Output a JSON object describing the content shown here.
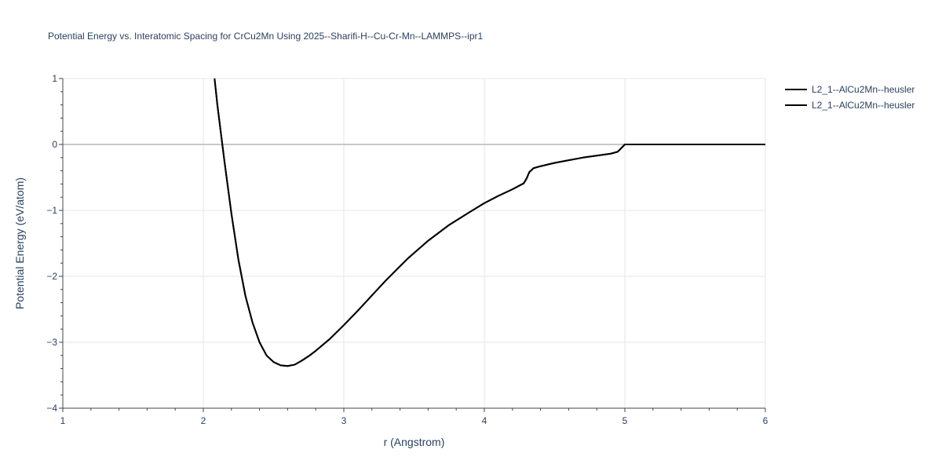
{
  "chart_data": {
    "type": "line",
    "title": "Potential Energy vs. Interatomic Spacing for CrCu2Mn Using 2025--Sharifi-H--Cu-Cr-Mn--LAMMPS--ipr1",
    "xlabel": "r (Angstrom)",
    "ylabel": "Potential Energy (eV/atom)",
    "xlim": [
      1,
      6
    ],
    "ylim": [
      -4,
      1
    ],
    "x_ticks": [
      "1",
      "2",
      "3",
      "4",
      "5",
      "6"
    ],
    "y_ticks": [
      "−4",
      "−3",
      "−2",
      "−1",
      "0",
      "1"
    ],
    "x_tick_values": [
      1,
      2,
      3,
      4,
      5,
      6
    ],
    "y_tick_values": [
      -4,
      -3,
      -2,
      -1,
      0,
      1
    ],
    "grid": true,
    "legend_position": "top-right",
    "series": [
      {
        "name": "L2_1--AlCu2Mn--heusler",
        "color": "#000000",
        "x": [
          2.08,
          2.1,
          2.15,
          2.2,
          2.25,
          2.3,
          2.35,
          2.4,
          2.45,
          2.5,
          2.55,
          2.6,
          2.65,
          2.7,
          2.75,
          2.8,
          2.9,
          3.0,
          3.1,
          3.2,
          3.3,
          3.45,
          3.6,
          3.75,
          3.9,
          4.0,
          4.1,
          4.2,
          4.28,
          4.3,
          4.32,
          4.35,
          4.4,
          4.5,
          4.6,
          4.7,
          4.8,
          4.9,
          4.95,
          5.0,
          5.5,
          6.0
        ],
        "y": [
          1.0,
          0.6,
          -0.25,
          -1.05,
          -1.75,
          -2.3,
          -2.7,
          -3.0,
          -3.2,
          -3.3,
          -3.35,
          -3.36,
          -3.34,
          -3.28,
          -3.21,
          -3.13,
          -2.95,
          -2.74,
          -2.52,
          -2.29,
          -2.06,
          -1.74,
          -1.46,
          -1.22,
          -1.02,
          -0.89,
          -0.78,
          -0.68,
          -0.59,
          -0.52,
          -0.42,
          -0.36,
          -0.33,
          -0.28,
          -0.24,
          -0.2,
          -0.17,
          -0.14,
          -0.11,
          0.0,
          0.0,
          0.0
        ]
      },
      {
        "name": "L2_1--AlCu2Mn--heusler",
        "color": "#000000",
        "x": [
          2.08,
          2.1,
          2.15,
          2.2,
          2.25,
          2.3,
          2.35,
          2.4,
          2.45,
          2.5,
          2.55,
          2.6,
          2.65,
          2.7,
          2.75,
          2.8,
          2.9,
          3.0,
          3.1,
          3.2,
          3.3,
          3.45,
          3.6,
          3.75,
          3.9,
          4.0,
          4.1,
          4.2,
          4.28,
          4.3,
          4.32,
          4.35,
          4.4,
          4.5,
          4.6,
          4.7,
          4.8,
          4.9,
          4.95,
          5.0,
          5.5,
          6.0
        ],
        "y": [
          1.0,
          0.6,
          -0.25,
          -1.05,
          -1.75,
          -2.3,
          -2.7,
          -3.0,
          -3.2,
          -3.3,
          -3.35,
          -3.36,
          -3.34,
          -3.28,
          -3.21,
          -3.13,
          -2.95,
          -2.74,
          -2.52,
          -2.29,
          -2.06,
          -1.74,
          -1.46,
          -1.22,
          -1.02,
          -0.89,
          -0.78,
          -0.68,
          -0.59,
          -0.52,
          -0.42,
          -0.36,
          -0.33,
          -0.28,
          -0.24,
          -0.2,
          -0.17,
          -0.14,
          -0.11,
          0.0,
          0.0,
          0.0
        ]
      }
    ]
  }
}
